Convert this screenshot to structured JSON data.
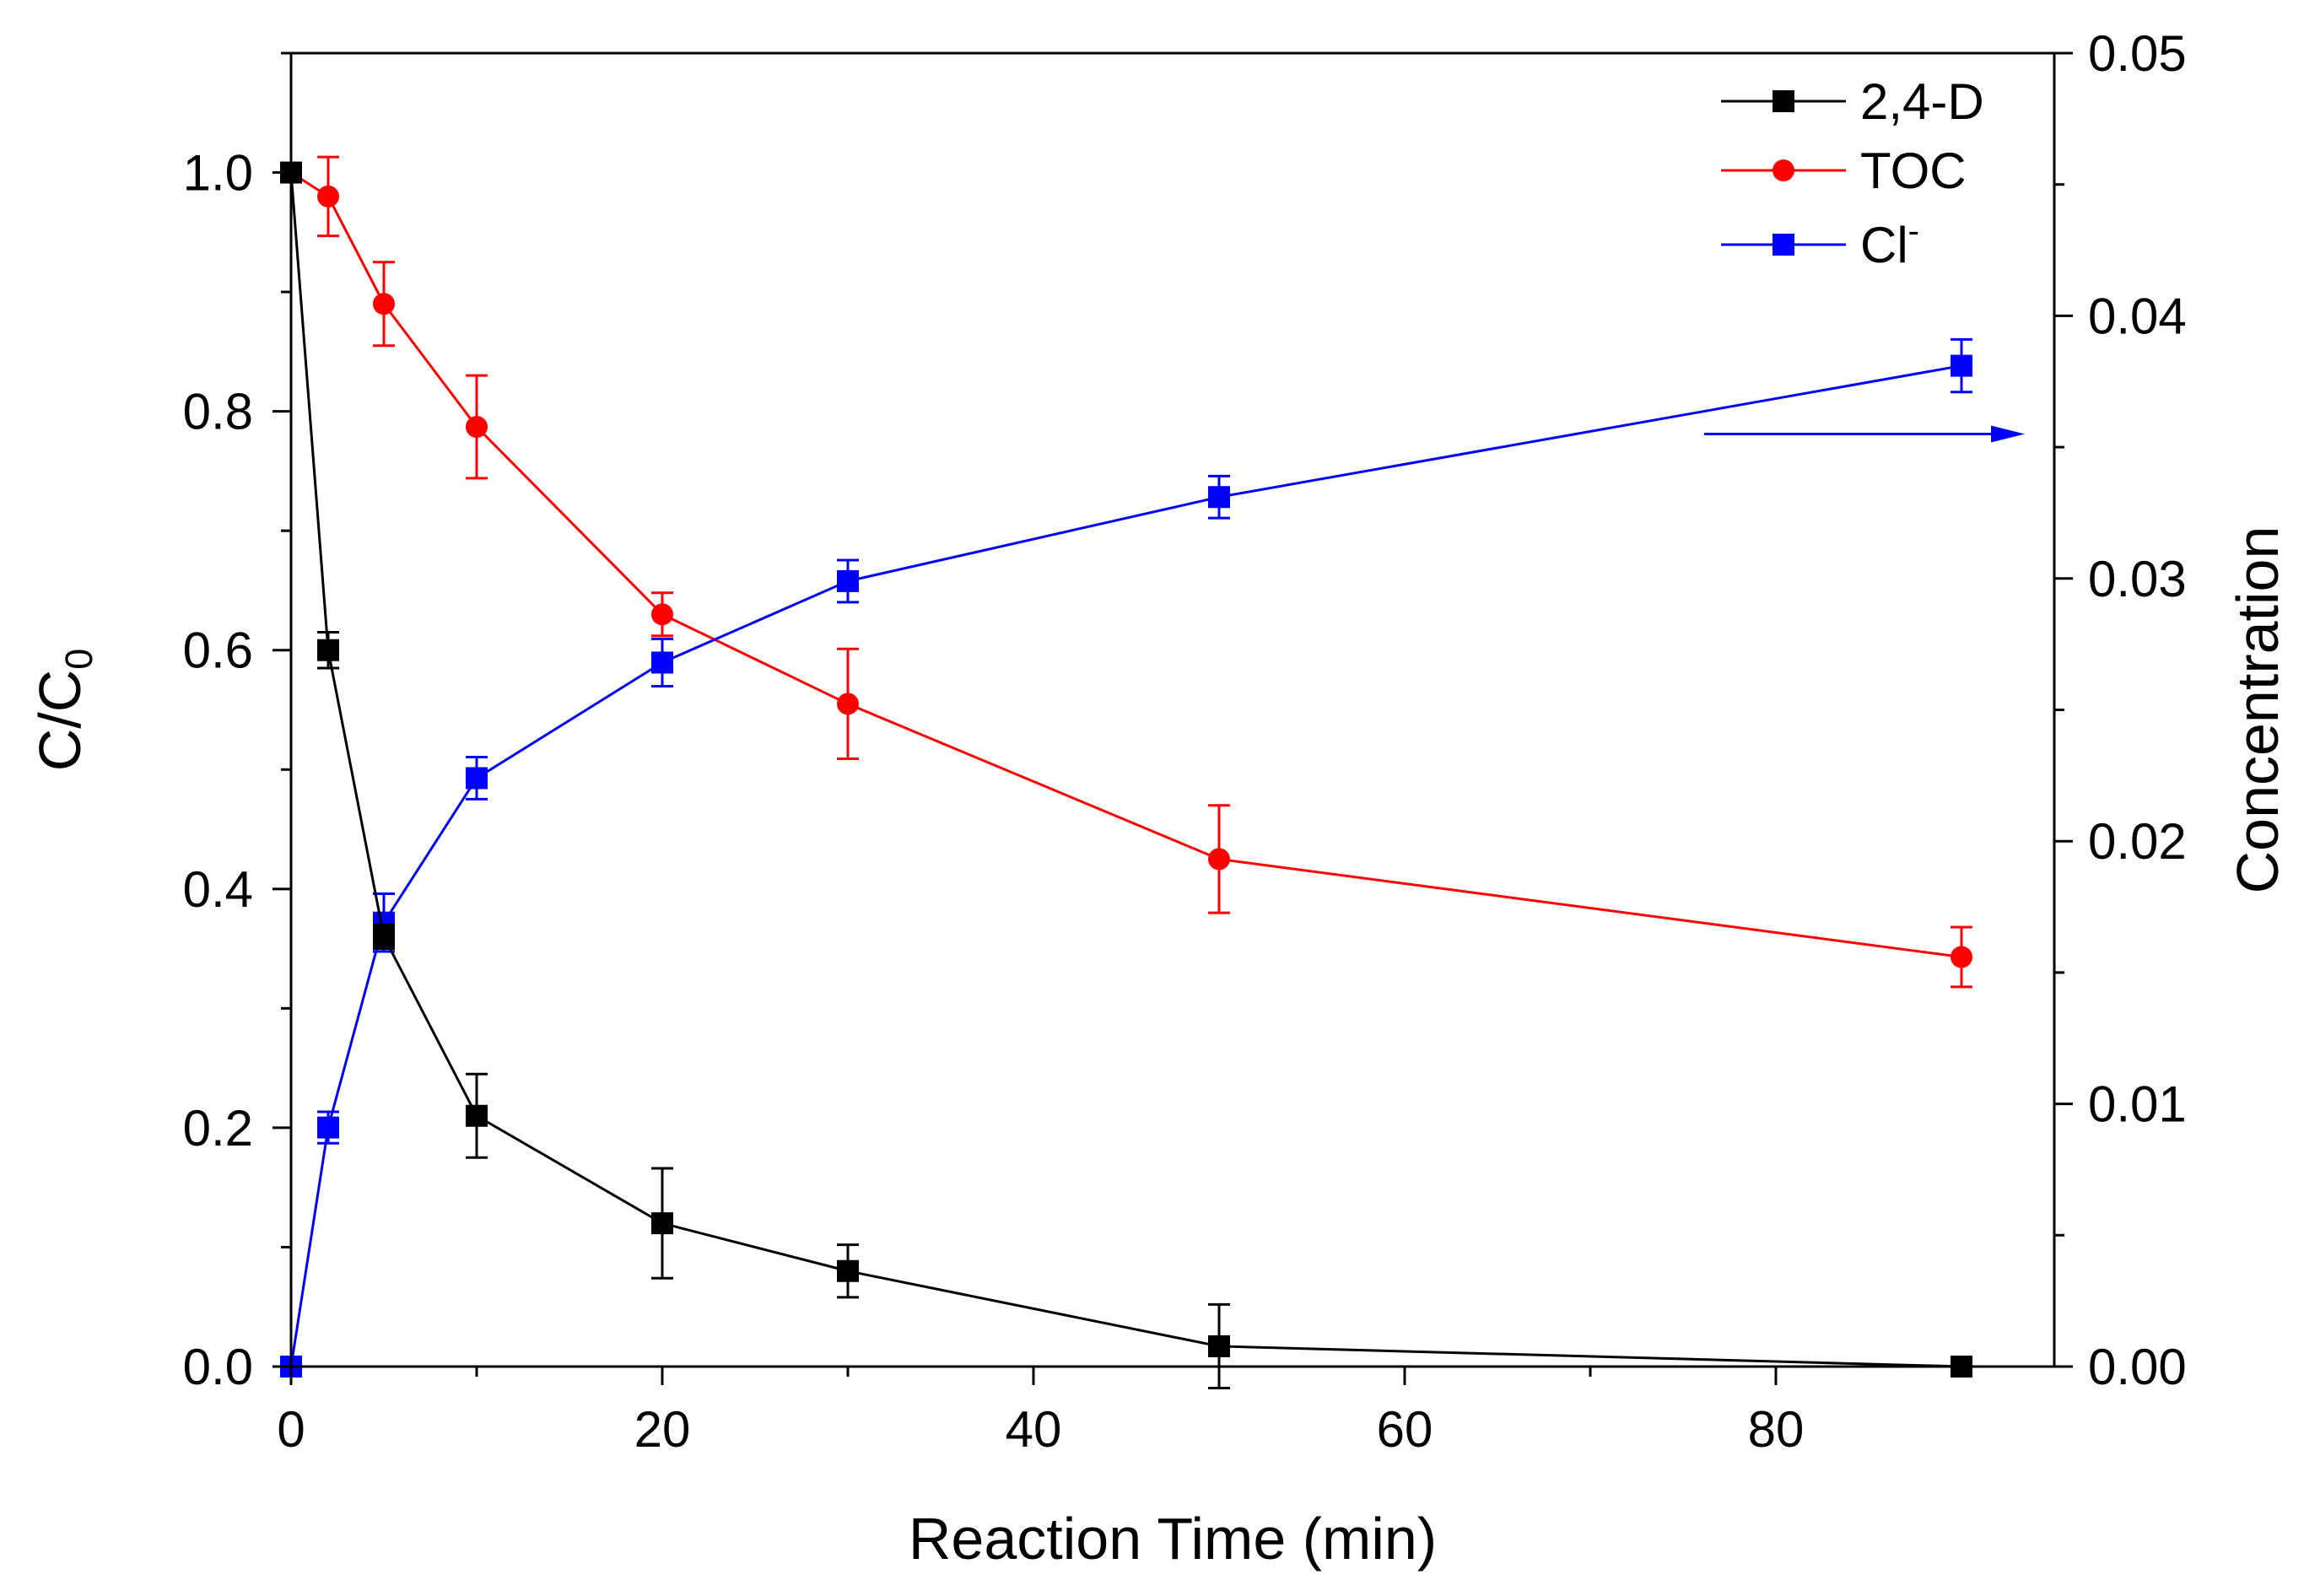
{
  "chart_data": {
    "type": "line",
    "xlabel": "Reaction Time (min)",
    "ylabel": {
      "main": "C/C",
      "sub": "0"
    },
    "y2label": "Concentration",
    "xlim": [
      0,
      95
    ],
    "ylim": [
      0,
      1.1
    ],
    "y2lim": [
      0,
      0.05
    ],
    "xticks": [
      0,
      20,
      40,
      60,
      80
    ],
    "yticks": [
      0.0,
      0.2,
      0.4,
      0.6,
      0.8,
      1.0
    ],
    "y2ticks": [
      0.0,
      0.01,
      0.02,
      0.03,
      0.04,
      0.05
    ],
    "xtick_labels": [
      "0",
      "20",
      "40",
      "60",
      "80"
    ],
    "ytick_labels": [
      "0.0",
      "0.2",
      "0.4",
      "0.6",
      "0.8",
      "1.0"
    ],
    "y2tick_labels": [
      "0.00",
      "0.01",
      "0.02",
      "0.03",
      "0.04",
      "0.05"
    ],
    "grid": false,
    "legend": {
      "position": "top-right"
    },
    "series": [
      {
        "name": "2,4-D",
        "label_main": "2,4-D",
        "label_sup": "",
        "marker": "square",
        "color": "#000000",
        "axis": "left",
        "x": [
          0,
          2,
          5,
          10,
          20,
          30,
          50,
          90
        ],
        "y": [
          1.0,
          0.6,
          0.36,
          0.21,
          0.12,
          0.08,
          0.017,
          0.0
        ],
        "err": [
          0,
          0.015,
          0.01,
          0.035,
          0.046,
          0.022,
          0.035,
          0
        ]
      },
      {
        "name": "TOC",
        "label_main": "TOC",
        "label_sup": "",
        "marker": "circle",
        "color": "#ff0000",
        "axis": "left",
        "x": [
          0,
          2,
          5,
          10,
          20,
          30,
          50,
          90
        ],
        "y": [
          1.0,
          0.98,
          0.89,
          0.787,
          0.63,
          0.555,
          0.425,
          0.343
        ],
        "err": [
          0,
          0.033,
          0.035,
          0.043,
          0.018,
          0.046,
          0.045,
          0.025
        ]
      },
      {
        "name": "Cl-",
        "label_main": "Cl",
        "label_sup": "-",
        "marker": "square",
        "color": "#0000ff",
        "axis": "right",
        "x": [
          0,
          2,
          5,
          10,
          20,
          30,
          50,
          90
        ],
        "y": [
          0.0,
          0.0091,
          0.0169,
          0.0224,
          0.0268,
          0.0299,
          0.0331,
          0.0381
        ],
        "err": [
          0,
          0.0006,
          0.0011,
          0.0008,
          0.0009,
          0.0008,
          0.0008,
          0.001
        ]
      }
    ],
    "annotation": {
      "type": "arrow",
      "color": "#0000ff",
      "direction": "right"
    }
  }
}
